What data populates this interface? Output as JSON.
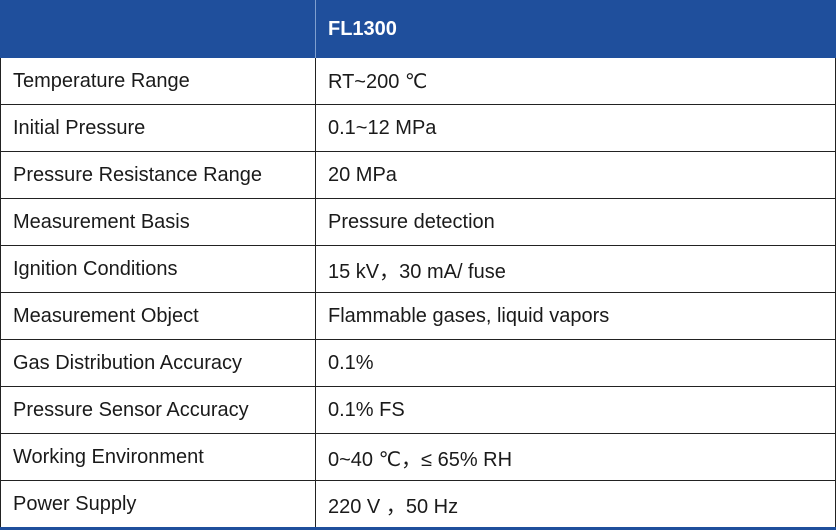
{
  "header": {
    "param_label": "",
    "model": "FL1300"
  },
  "rows": [
    {
      "label": "Temperature Range",
      "value": "RT~200 ℃"
    },
    {
      "label": "Initial Pressure",
      "value": "0.1~12 MPa"
    },
    {
      "label": "Pressure Resistance Range",
      "value": "20 MPa"
    },
    {
      "label": "Measurement Basis",
      "value": "Pressure detection"
    },
    {
      "label": "Ignition Conditions",
      "value": "15 kV，30 mA/ fuse"
    },
    {
      "label": "Measurement Object",
      "value": "Flammable gases, liquid vapors"
    },
    {
      "label": "Gas Distribution Accuracy",
      "value": "0.1%"
    },
    {
      "label": "Pressure Sensor Accuracy",
      "value": "0.1% FS"
    },
    {
      "label": "Working Environment",
      "value": "0~40 ℃，≤ 65% RH"
    },
    {
      "label": "Power Supply",
      "value": "220 V ，50 Hz"
    }
  ],
  "colors": {
    "header_bg": "#1f4f9c",
    "header_text": "#ffffff",
    "border": "#222222"
  }
}
